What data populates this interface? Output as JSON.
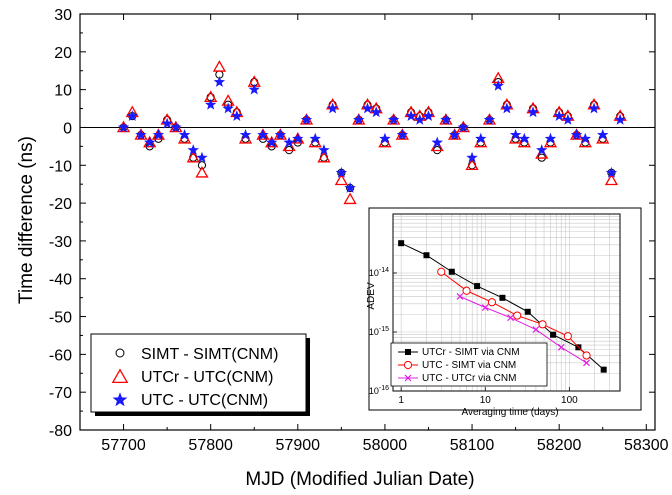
{
  "chart_data": [
    {
      "type": "scatter",
      "xlabel": "MJD (Modified Julian Date)",
      "ylabel": "Time difference (ns)",
      "xlim": [
        57650,
        58310
      ],
      "ylim": [
        -80,
        30
      ],
      "x_ticks": [
        57700,
        57800,
        57900,
        58000,
        58100,
        58200,
        58300
      ],
      "y_ticks": [
        30,
        20,
        10,
        0,
        -10,
        -20,
        -30,
        -40,
        -50,
        -60,
        -70,
        -80
      ],
      "x_tick_labels": [
        "57700",
        "57800",
        "57900",
        "58000",
        "58100",
        "58200",
        "58300"
      ],
      "y_tick_labels": [
        "30",
        "20",
        "10",
        "0",
        "-10",
        "-20",
        "-30",
        "-40",
        "-50",
        "-60",
        "-70",
        "-80"
      ],
      "zero_line": true,
      "legend_position": "bottom-left",
      "series": [
        {
          "name": "SIMT - SIMT(CNM)",
          "marker": "open-circle",
          "color": "#000000",
          "x": [
            57700,
            57710,
            57720,
            57730,
            57740,
            57750,
            57760,
            57770,
            57780,
            57790,
            57800,
            57810,
            57820,
            57830,
            57840,
            57850,
            57860,
            57870,
            57880,
            57890,
            57900,
            57910,
            57920,
            57930,
            57940,
            57950,
            57960,
            57970,
            57980,
            57990,
            58000,
            58010,
            58020,
            58030,
            58040,
            58050,
            58060,
            58070,
            58080,
            58090,
            58100,
            58110,
            58120,
            58130,
            58140,
            58150,
            58160,
            58170,
            58180,
            58190,
            58200,
            58210,
            58220,
            58230,
            58240,
            58250,
            58260,
            58270
          ],
          "y": [
            0,
            3,
            -2,
            -5,
            -3,
            2,
            0,
            -3,
            -8,
            -10,
            8,
            14,
            6,
            4,
            -3,
            12,
            -3,
            -5,
            -2,
            -6,
            -4,
            2,
            -4,
            -8,
            6,
            -12,
            -16,
            2,
            6,
            5,
            -4,
            2,
            -2,
            4,
            3,
            4,
            -6,
            2,
            -2,
            0,
            -10,
            -4,
            2,
            12,
            6,
            -3,
            -4,
            5,
            -8,
            -4,
            4,
            3,
            -2,
            -4,
            6,
            -3,
            -12,
            3
          ]
        },
        {
          "name": "UTCr - UTC(CNM)",
          "marker": "open-triangle",
          "color": "#ff0000",
          "x": [
            57700,
            57710,
            57720,
            57730,
            57740,
            57750,
            57760,
            57770,
            57780,
            57790,
            57800,
            57810,
            57820,
            57830,
            57840,
            57850,
            57860,
            57870,
            57880,
            57890,
            57900,
            57910,
            57920,
            57930,
            57940,
            57950,
            57960,
            57970,
            57980,
            57990,
            58000,
            58010,
            58020,
            58030,
            58040,
            58050,
            58060,
            58070,
            58080,
            58090,
            58100,
            58110,
            58120,
            58130,
            58140,
            58150,
            58160,
            58170,
            58180,
            58190,
            58200,
            58210,
            58220,
            58230,
            58240,
            58250,
            58260,
            58270
          ],
          "y": [
            0,
            4,
            -2,
            -4,
            -2,
            2,
            0,
            -3,
            -8,
            -12,
            8,
            16,
            7,
            4,
            -3,
            12,
            -2,
            -4,
            -2,
            -5,
            -3,
            2,
            -4,
            -8,
            6,
            -14,
            -19,
            2,
            6,
            5,
            -4,
            2,
            -2,
            4,
            3,
            4,
            -5,
            2,
            -2,
            0,
            -10,
            -4,
            2,
            13,
            6,
            -3,
            -4,
            5,
            -7,
            -4,
            4,
            3,
            -2,
            -4,
            6,
            -3,
            -14,
            3
          ]
        },
        {
          "name": "UTC - UTC(CNM)",
          "marker": "star",
          "color": "#1a1aff",
          "x": [
            57700,
            57710,
            57720,
            57730,
            57740,
            57750,
            57760,
            57770,
            57780,
            57790,
            57800,
            57810,
            57820,
            57830,
            57840,
            57850,
            57860,
            57870,
            57880,
            57890,
            57900,
            57910,
            57920,
            57930,
            57940,
            57950,
            57960,
            57970,
            57980,
            57990,
            58000,
            58010,
            58020,
            58030,
            58040,
            58050,
            58060,
            58070,
            58080,
            58090,
            58100,
            58110,
            58120,
            58130,
            58140,
            58150,
            58160,
            58170,
            58180,
            58190,
            58200,
            58210,
            58220,
            58230,
            58240,
            58250,
            58260,
            58270
          ],
          "y": [
            0,
            3,
            -2,
            -4,
            -2,
            1,
            0,
            -2,
            -6,
            -8,
            6,
            12,
            5,
            3,
            -2,
            10,
            -2,
            -4,
            -2,
            -4,
            -3,
            2,
            -3,
            -6,
            5,
            -12,
            -16,
            2,
            5,
            4,
            -3,
            2,
            -2,
            3,
            2,
            3,
            -4,
            2,
            -2,
            0,
            -8,
            -3,
            2,
            11,
            5,
            -2,
            -3,
            4,
            -6,
            -3,
            3,
            2,
            -2,
            -3,
            5,
            -2,
            -12,
            2
          ]
        }
      ]
    },
    {
      "type": "line",
      "subtype": "inset",
      "xlabel": "Averaging time (days)",
      "ylabel": "ADEV",
      "x_scale": "log",
      "y_scale": "log",
      "xlim": [
        0.8,
        400
      ],
      "ylim": [
        1e-16,
        1e-13
      ],
      "grid": true,
      "legend_position": "bottom-left",
      "x_tick_labels": [
        "1",
        "10",
        "100"
      ],
      "y_tick_labels": [
        "10-14",
        "10-15",
        "10-16"
      ],
      "series": [
        {
          "name": "UTCr - SIMT via CNM",
          "marker": "filled-square",
          "color": "#000000",
          "x": [
            1,
            2,
            4,
            8,
            16,
            32,
            64,
            128,
            256
          ],
          "y": [
            3.2e-14,
            2e-14,
            1.05e-14,
            6e-15,
            3.8e-15,
            2.2e-15,
            9e-16,
            5.5e-16,
            2.3e-16
          ]
        },
        {
          "name": "UTC - SIMT via CNM",
          "marker": "open-circle",
          "color": "#ff0000",
          "x": [
            3,
            6,
            12,
            24,
            48,
            96,
            160
          ],
          "y": [
            1.05e-14,
            5e-15,
            3.2e-15,
            1.9e-15,
            1.35e-15,
            8.5e-16,
            4e-16
          ]
        },
        {
          "name": "UTC - UTCr via CNM",
          "marker": "cross",
          "color": "#e020e0",
          "x": [
            5,
            10,
            20,
            40,
            80,
            160
          ],
          "y": [
            4e-15,
            2.6e-15,
            1.75e-15,
            1.1e-15,
            5.5e-16,
            3e-16
          ]
        }
      ]
    }
  ]
}
